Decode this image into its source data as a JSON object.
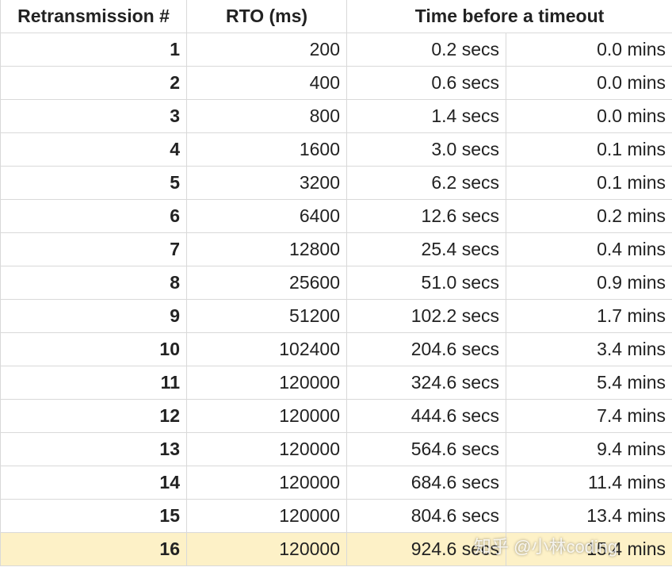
{
  "table": {
    "headers": [
      "Retransmission #",
      "RTO (ms)",
      "Time before a timeout"
    ],
    "rows": [
      [
        "1",
        "200",
        "0.2 secs",
        "0.0 mins"
      ],
      [
        "2",
        "400",
        "0.6 secs",
        "0.0 mins"
      ],
      [
        "3",
        "800",
        "1.4 secs",
        "0.0 mins"
      ],
      [
        "4",
        "1600",
        "3.0 secs",
        "0.1 mins"
      ],
      [
        "5",
        "3200",
        "6.2 secs",
        "0.1 mins"
      ],
      [
        "6",
        "6400",
        "12.6 secs",
        "0.2 mins"
      ],
      [
        "7",
        "12800",
        "25.4 secs",
        "0.4 mins"
      ],
      [
        "8",
        "25600",
        "51.0 secs",
        "0.9 mins"
      ],
      [
        "9",
        "51200",
        "102.2 secs",
        "1.7 mins"
      ],
      [
        "10",
        "102400",
        "204.6 secs",
        "3.4 mins"
      ],
      [
        "11",
        "120000",
        "324.6 secs",
        "5.4 mins"
      ],
      [
        "12",
        "120000",
        "444.6 secs",
        "7.4 mins"
      ],
      [
        "13",
        "120000",
        "564.6 secs",
        "9.4 mins"
      ],
      [
        "14",
        "120000",
        "684.6 secs",
        "11.4 mins"
      ],
      [
        "15",
        "120000",
        "804.6 secs",
        "13.4 mins"
      ],
      [
        "16",
        "120000",
        "924.6 secs",
        "15.4 mins"
      ]
    ]
  },
  "watermark": "知乎 @小林coding"
}
